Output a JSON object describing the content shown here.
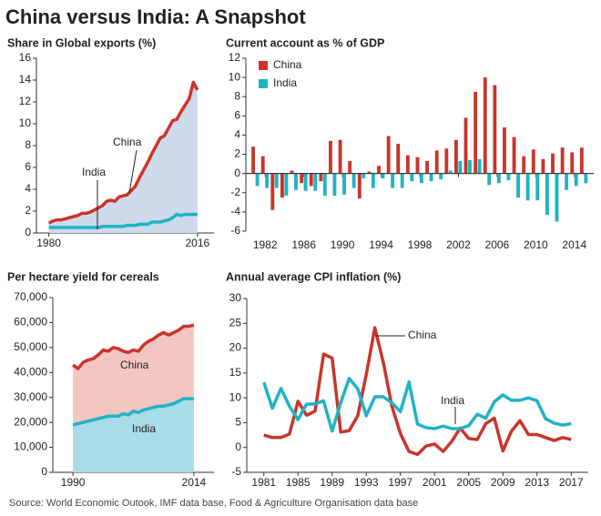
{
  "title": "China versus India: A Snapshot",
  "source": "Source: World Economic Outook, IMF data base, Food & Agriculture Organisation data base",
  "chart_data": [
    {
      "type": "line",
      "title": "Share in Global exports (%)",
      "x": [
        1980,
        1981,
        1982,
        1983,
        1984,
        1985,
        1986,
        1987,
        1988,
        1989,
        1990,
        1991,
        1992,
        1993,
        1994,
        1995,
        1996,
        1997,
        1998,
        1999,
        2000,
        2001,
        2002,
        2003,
        2004,
        2005,
        2006,
        2007,
        2008,
        2009,
        2010,
        2011,
        2012,
        2013,
        2014,
        2015,
        2016
      ],
      "series": [
        {
          "name": "China",
          "color": "#c9352b",
          "fill": "#cddaec",
          "values": [
            0.9,
            1.1,
            1.2,
            1.2,
            1.3,
            1.4,
            1.5,
            1.6,
            1.8,
            1.8,
            1.9,
            2.1,
            2.3,
            2.5,
            2.9,
            3.0,
            2.9,
            3.3,
            3.4,
            3.5,
            3.9,
            4.3,
            5.1,
            5.8,
            6.5,
            7.3,
            8.0,
            8.7,
            8.9,
            9.6,
            10.3,
            10.4,
            11.1,
            11.7,
            12.3,
            13.8,
            13.1
          ]
        },
        {
          "name": "India",
          "color": "#1fb3c4",
          "values": [
            0.5,
            0.5,
            0.5,
            0.5,
            0.5,
            0.5,
            0.5,
            0.5,
            0.5,
            0.5,
            0.5,
            0.5,
            0.5,
            0.6,
            0.6,
            0.6,
            0.6,
            0.6,
            0.6,
            0.7,
            0.7,
            0.7,
            0.8,
            0.8,
            0.8,
            1.0,
            1.0,
            1.0,
            1.1,
            1.2,
            1.4,
            1.7,
            1.6,
            1.7,
            1.7,
            1.7,
            1.7
          ]
        }
      ],
      "xlim": [
        1977,
        2020
      ],
      "xticks": [
        1980,
        2016
      ],
      "ylim": [
        0,
        16
      ],
      "yticks": [
        0,
        2,
        4,
        6,
        8,
        10,
        12,
        14,
        16
      ]
    },
    {
      "type": "bar",
      "title": "Current account as % of GDP",
      "x": [
        1981,
        1982,
        1983,
        1984,
        1985,
        1986,
        1987,
        1988,
        1989,
        1990,
        1991,
        1992,
        1993,
        1994,
        1995,
        1996,
        1997,
        1998,
        1999,
        2000,
        2001,
        2002,
        2003,
        2004,
        2005,
        2006,
        2007,
        2008,
        2009,
        2010,
        2011,
        2012,
        2013,
        2014,
        2015
      ],
      "series": [
        {
          "name": "China",
          "color": "#c9352b",
          "values": [
            2.8,
            1.8,
            -3.8,
            -2.5,
            0.3,
            -1.0,
            -1.3,
            -0.8,
            3.4,
            3.5,
            1.3,
            -2.6,
            0.2,
            0.8,
            3.9,
            3.1,
            1.9,
            1.7,
            1.3,
            2.4,
            2.6,
            3.5,
            5.8,
            8.5,
            10.0,
            9.2,
            4.8,
            3.8,
            1.8,
            2.5,
            1.5,
            2.1,
            2.7,
            2.2,
            2.7
          ]
        },
        {
          "name": "India",
          "color": "#1fb3c4",
          "values": [
            -1.3,
            -1.5,
            -1.5,
            -2.3,
            -1.7,
            -1.8,
            -1.8,
            -2.3,
            -2.3,
            -2.2,
            -1.5,
            -0.5,
            -1.5,
            -0.5,
            -1.5,
            -1.5,
            -0.8,
            -1.0,
            -0.8,
            -0.6,
            0.3,
            1.3,
            1.4,
            1.5,
            -1.2,
            -1.0,
            -0.7,
            -2.5,
            -2.8,
            -2.8,
            -4.3,
            -5.0,
            -1.7,
            -1.3,
            -1.0
          ]
        }
      ],
      "xlim": [
        1980,
        2016
      ],
      "xticks": [
        1982,
        1986,
        1990,
        1994,
        1998,
        2002,
        2006,
        2010,
        2014
      ],
      "ylim": [
        -6,
        12
      ],
      "yticks": [
        -6,
        -4,
        -2,
        0,
        2,
        4,
        6,
        8,
        10,
        12
      ],
      "legend": "top-left"
    },
    {
      "type": "line",
      "title": "Per hectare yield for cereals",
      "x": [
        1990,
        1991,
        1992,
        1993,
        1994,
        1995,
        1996,
        1997,
        1998,
        1999,
        2000,
        2001,
        2002,
        2003,
        2004,
        2005,
        2006,
        2007,
        2008,
        2009,
        2010,
        2011,
        2012,
        2013,
        2014
      ],
      "series": [
        {
          "name": "China",
          "color": "#c9352b",
          "fill": "#f3c6c2",
          "values": [
            43000,
            41500,
            44000,
            45000,
            45500,
            47000,
            49000,
            48500,
            50000,
            49500,
            48500,
            48000,
            49000,
            48500,
            51000,
            52500,
            53500,
            55000,
            56000,
            55000,
            56000,
            57000,
            58500,
            58500,
            59000
          ]
        },
        {
          "name": "India",
          "color": "#1fb3c4",
          "fill": "#a8dde8",
          "values": [
            19000,
            19500,
            20000,
            20500,
            21000,
            21500,
            22000,
            22500,
            22500,
            22500,
            23500,
            23000,
            24500,
            24000,
            25000,
            25500,
            26000,
            26500,
            26500,
            27000,
            27500,
            28500,
            29500,
            29500,
            29500
          ]
        }
      ],
      "xlim": [
        1986,
        2018
      ],
      "xticks": [
        1990,
        2014
      ],
      "ylim": [
        0,
        70000
      ],
      "yticks": [
        0,
        {
          "value": 10000,
          "label": "10,000"
        },
        {
          "value": 20000,
          "label": "20,000"
        },
        {
          "value": 30000,
          "label": "30,000"
        },
        {
          "value": 40000,
          "label": "40,000"
        },
        {
          "value": 50000,
          "label": "50,000"
        },
        {
          "value": 60000,
          "label": "60,000"
        },
        {
          "value": 70000,
          "label": "70,000"
        }
      ]
    },
    {
      "type": "line",
      "title": "Annual average CPI inflation (%)",
      "x": [
        1981,
        1982,
        1983,
        1984,
        1985,
        1986,
        1987,
        1988,
        1989,
        1990,
        1991,
        1992,
        1993,
        1994,
        1995,
        1996,
        1997,
        1998,
        1999,
        2000,
        2001,
        2002,
        2003,
        2004,
        2005,
        2006,
        2007,
        2008,
        2009,
        2010,
        2011,
        2012,
        2013,
        2014,
        2015,
        2016,
        2017
      ],
      "series": [
        {
          "name": "China",
          "color": "#c9352b",
          "values": [
            2.5,
            2.0,
            2.0,
            2.7,
            9.3,
            6.5,
            7.3,
            18.8,
            18.0,
            3.1,
            3.4,
            6.4,
            14.7,
            24.1,
            17.1,
            8.3,
            2.8,
            -0.8,
            -1.4,
            0.3,
            0.7,
            -0.8,
            1.2,
            3.9,
            1.8,
            1.6,
            4.8,
            5.9,
            -0.7,
            3.3,
            5.4,
            2.6,
            2.6,
            2.0,
            1.4,
            2.0,
            1.6
          ]
        },
        {
          "name": "India",
          "color": "#1fb3c4",
          "values": [
            13.1,
            7.9,
            11.9,
            8.3,
            5.6,
            8.7,
            8.8,
            9.4,
            3.3,
            9.0,
            13.9,
            11.8,
            6.4,
            10.2,
            10.2,
            9.0,
            7.2,
            13.2,
            4.7,
            4.0,
            3.8,
            4.3,
            3.8,
            3.8,
            4.4,
            6.7,
            5.9,
            9.2,
            10.6,
            9.5,
            9.5,
            10.0,
            9.4,
            5.8,
            4.9,
            4.5,
            4.8
          ]
        }
      ],
      "xlim": [
        1979,
        2019
      ],
      "xticks": [
        1981,
        1985,
        1989,
        1993,
        1997,
        2001,
        2005,
        2009,
        2013,
        2017
      ],
      "ylim": [
        -5,
        30
      ],
      "yticks": [
        -5,
        0,
        5,
        10,
        15,
        20,
        25,
        30
      ]
    }
  ]
}
